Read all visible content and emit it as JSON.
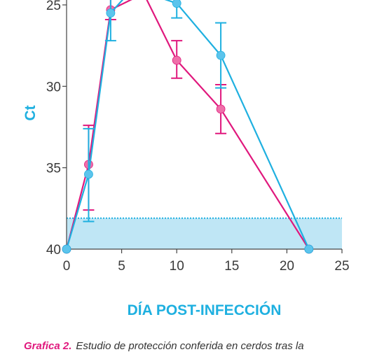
{
  "chart_data": {
    "type": "line",
    "title": "",
    "xlabel": "DÍA POST-INFECCIÓN",
    "ylabel": "Ct",
    "xlim": [
      0,
      25
    ],
    "ylim": [
      40,
      25
    ],
    "y_axis_inverted": true,
    "x_ticks": [
      "0",
      "5",
      "10",
      "15",
      "20",
      "25"
    ],
    "y_ticks": [
      "25",
      "30",
      "35",
      "40"
    ],
    "grid": false,
    "legend": "none",
    "series": [
      {
        "color": "#e0187d",
        "points": [
          {
            "x": 0,
            "y": 40
          },
          {
            "x": 2,
            "y": 34.8,
            "err_low": 32.4,
            "err_high": 37.6
          },
          {
            "x": 4,
            "y": 25.3,
            "err_low": 24.6,
            "err_high": 25.9
          },
          {
            "x": 7,
            "y": 24.3
          },
          {
            "x": 10,
            "y": 28.4,
            "err_low": 27.2,
            "err_high": 29.5
          },
          {
            "x": 14,
            "y": 31.4,
            "err_low": 29.9,
            "err_high": 32.9
          },
          {
            "x": 22,
            "y": 40
          }
        ]
      },
      {
        "color": "#1fb0e0",
        "points": [
          {
            "x": 0,
            "y": 40
          },
          {
            "x": 2,
            "y": 35.4,
            "err_low": 32.6,
            "err_high": 38.3
          },
          {
            "x": 4,
            "y": 25.5,
            "err_low": 23.6,
            "err_high": 27.2
          },
          {
            "x": 6,
            "y": 24.0
          },
          {
            "x": 10,
            "y": 24.9,
            "err_low": 24.4,
            "err_high": 25.8
          },
          {
            "x": 14,
            "y": 28.1,
            "err_low": 26.1,
            "err_high": 30.1
          },
          {
            "x": 22,
            "y": 40
          }
        ]
      }
    ],
    "threshold": {
      "y": 38.1,
      "color": "#1fb0e0",
      "fill": "#bfe6f5"
    }
  },
  "caption": {
    "lead": "Grafica 2.",
    "text": "Estudio de protección conferida en cerdos tras la"
  }
}
